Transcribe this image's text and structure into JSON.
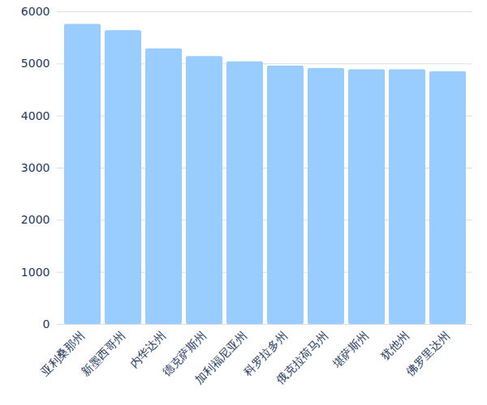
{
  "chart_data": {
    "type": "bar",
    "categories": [
      "亚利桑那州",
      "新墨西哥州",
      "内华达州",
      "德克萨斯州",
      "加利福尼亚州",
      "科罗拉多州",
      "俄克拉荷马州",
      "堪萨斯州",
      "犹他州",
      "佛罗里达州"
    ],
    "values": [
      5760,
      5640,
      5290,
      5140,
      5040,
      4960,
      4910,
      4890,
      4890,
      4850
    ],
    "color": "#99ccff",
    "ylim": [
      0,
      6000
    ],
    "yticks": [
      0,
      1000,
      2000,
      3000,
      4000,
      5000,
      6000
    ],
    "grid": true
  }
}
